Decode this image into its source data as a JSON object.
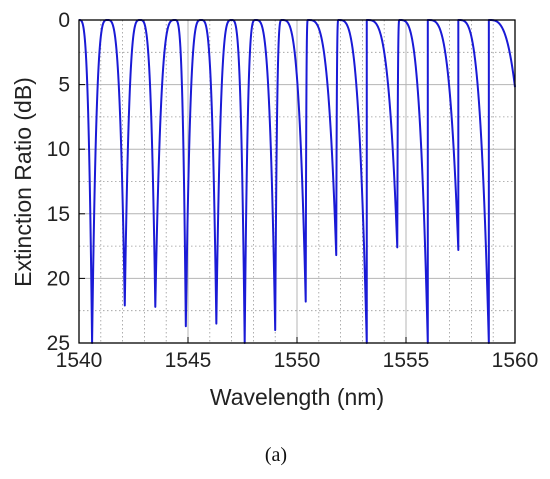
{
  "chart_data": {
    "type": "line",
    "title": "",
    "xlabel": "Wavelength (nm)",
    "ylabel": "Extinction Ratio (dB)",
    "xlim": [
      1540,
      1560
    ],
    "ylim": [
      0,
      25
    ],
    "y_inverted": true,
    "x_ticks": [
      1540,
      1545,
      1550,
      1555,
      1560
    ],
    "y_ticks": [
      0,
      5,
      10,
      15,
      20,
      25
    ],
    "x_minor_step": 1,
    "y_minor_step": 2.5,
    "grid": true,
    "legend": "none",
    "series": [
      {
        "color": "#1a1ad6",
        "fringe_peaks_nm": [
          1541.3,
          1542.8,
          1544.4,
          1545.6,
          1547.0,
          1548.1,
          1549.3,
          1550.5,
          1551.9,
          1553.2,
          1554.7,
          1556.0,
          1557.4,
          1558.8
        ],
        "fringe_dips": [
          {
            "x": 1540.6,
            "y": 25.0
          },
          {
            "x": 1542.1,
            "y": 22.1
          },
          {
            "x": 1543.5,
            "y": 22.2
          },
          {
            "x": 1544.9,
            "y": 23.7
          },
          {
            "x": 1546.3,
            "y": 23.5
          },
          {
            "x": 1547.6,
            "y": 25.0
          },
          {
            "x": 1549.0,
            "y": 24.0
          },
          {
            "x": 1550.4,
            "y": 21.8
          },
          {
            "x": 1551.8,
            "y": 18.2
          },
          {
            "x": 1553.2,
            "y": 25.0
          },
          {
            "x": 1554.6,
            "y": 17.6
          },
          {
            "x": 1556.0,
            "y": 25.0
          },
          {
            "x": 1557.4,
            "y": 17.8
          },
          {
            "x": 1558.8,
            "y": 25.0
          }
        ]
      }
    ]
  },
  "caption": "(a)"
}
